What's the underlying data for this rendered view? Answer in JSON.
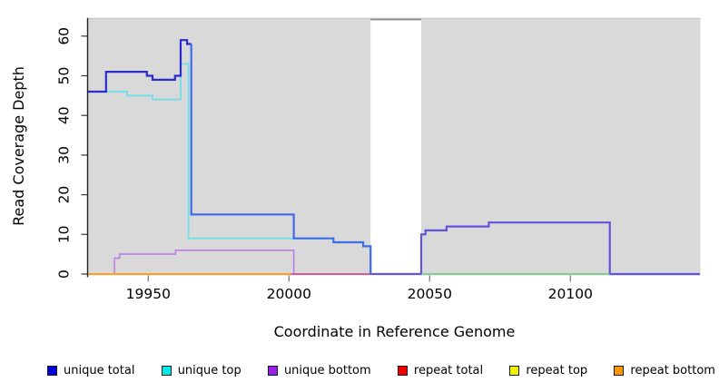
{
  "chart_data": {
    "type": "line",
    "subtype": "step-coverage-plot",
    "title": "",
    "xlabel": "Coordinate in Reference Genome",
    "ylabel": "Read Coverage Depth",
    "x_ticks": [
      19950,
      20000,
      20050,
      20100
    ],
    "y_ticks": [
      0,
      10,
      20,
      30,
      40,
      50,
      60
    ],
    "xlim": [
      19928.6,
      20146
    ],
    "ylim": [
      0,
      64.5
    ],
    "grid": "off",
    "plot_background": "#d9d9d9",
    "gap_band": {
      "from": 20029,
      "to": 20047,
      "fill": "#ffffff",
      "top_border": "#8a8a8a"
    },
    "series": [
      {
        "name": "unique-top",
        "color": "#6fe0ea",
        "width": 1.8,
        "end": 20146,
        "points": [
          [
            19928.6,
            46
          ],
          [
            19942.5,
            45
          ],
          [
            19951.5,
            44
          ],
          [
            19961.5,
            53
          ],
          [
            19964.3,
            9
          ],
          [
            20015.8,
            8
          ],
          [
            20026.4,
            7
          ],
          [
            20029,
            0
          ]
        ]
      },
      {
        "name": "unique-bottom",
        "color": "#c07de8",
        "width": 1.6,
        "end": 20029,
        "points": [
          [
            19928.6,
            0
          ],
          [
            19938,
            4
          ],
          [
            19939.8,
            5
          ],
          [
            19959.7,
            6
          ],
          [
            20001.7,
            0
          ]
        ]
      },
      {
        "name": "unique-total-left",
        "color": "#2b2bd0",
        "width": 2.2,
        "end": 19965.3,
        "points": [
          [
            19928.6,
            46
          ],
          [
            19935,
            51
          ],
          [
            19949.5,
            50
          ],
          [
            19951.5,
            49
          ],
          [
            19959.5,
            50
          ],
          [
            19961.5,
            59
          ],
          [
            19963.8,
            58
          ]
        ]
      },
      {
        "name": "unique-total-mid",
        "color": "#3e6ce9",
        "width": 2.2,
        "end": 20029,
        "points": [
          [
            19965.3,
            58
          ],
          [
            19965.3,
            15
          ],
          [
            20001.7,
            9
          ],
          [
            20015.8,
            8
          ],
          [
            20026.4,
            7
          ],
          [
            20029,
            0
          ]
        ]
      },
      {
        "name": "unique-total-and-bottom-right",
        "color": "#6153da",
        "width": 2.2,
        "end": 20146,
        "points": [
          [
            20029,
            0
          ],
          [
            20047,
            10
          ],
          [
            20048.5,
            11
          ],
          [
            20056,
            12
          ],
          [
            20071,
            13
          ],
          [
            20114,
            0
          ]
        ]
      }
    ],
    "zero_overlays": [
      {
        "name": "repeat-bottom-zero",
        "color": "#ffa11e",
        "width": 2.0,
        "from": 19928.6,
        "to": 20000.6
      },
      {
        "name": "repeat-total-zero",
        "color": "#d4457f",
        "width": 1.6,
        "from": 20000.6,
        "to": 20029
      },
      {
        "name": "top-strand-zero",
        "color": "#7cc87c",
        "width": 1.6,
        "from": 20047,
        "to": 20114
      }
    ],
    "legend": [
      {
        "label": "unique total",
        "color": "#0000dd"
      },
      {
        "label": "unique top",
        "color": "#00e8e8"
      },
      {
        "label": "unique bottom",
        "color": "#9a20e8"
      },
      {
        "label": "repeat total",
        "color": "#ee0000"
      },
      {
        "label": "repeat top",
        "color": "#f2f200"
      },
      {
        "label": "repeat bottom",
        "color": "#ff9800"
      }
    ]
  }
}
